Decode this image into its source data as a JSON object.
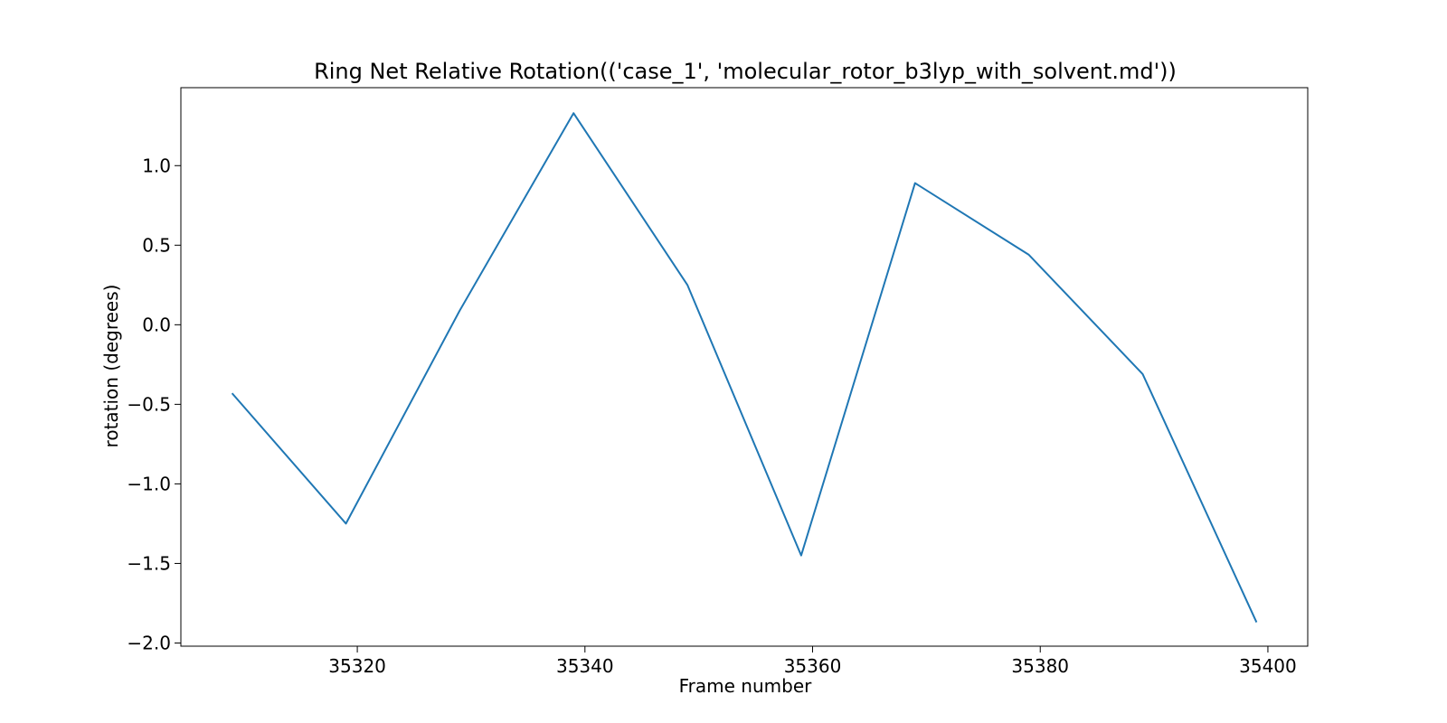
{
  "chart_data": {
    "type": "line",
    "title": "Ring Net Relative Rotation(('case_1', 'molecular_rotor_b3lyp_with_solvent.md'))",
    "xlabel": "Frame number",
    "ylabel": "rotation (degrees)",
    "xlim": [
      35304.5,
      35403.5
    ],
    "ylim": [
      -2.02,
      1.49
    ],
    "xticks": [
      35320,
      35340,
      35360,
      35380,
      35400
    ],
    "xtick_labels": [
      "35320",
      "35340",
      "35360",
      "35380",
      "35400"
    ],
    "yticks": [
      1.0,
      0.5,
      0.0,
      -0.5,
      -1.0,
      -1.5,
      -2.0
    ],
    "ytick_labels": [
      "1.0",
      "0.5",
      "0.0",
      "−0.5",
      "−1.0",
      "−1.5",
      "−2.0"
    ],
    "grid": false,
    "series": [
      {
        "color": "#1f77b4",
        "x": [
          35309,
          35319,
          35329,
          35339,
          35349,
          35359,
          35369,
          35379,
          35389,
          35399
        ],
        "y": [
          -0.43,
          -1.25,
          0.09,
          1.33,
          0.25,
          -1.45,
          0.89,
          0.44,
          -0.31,
          -1.87
        ]
      }
    ]
  }
}
